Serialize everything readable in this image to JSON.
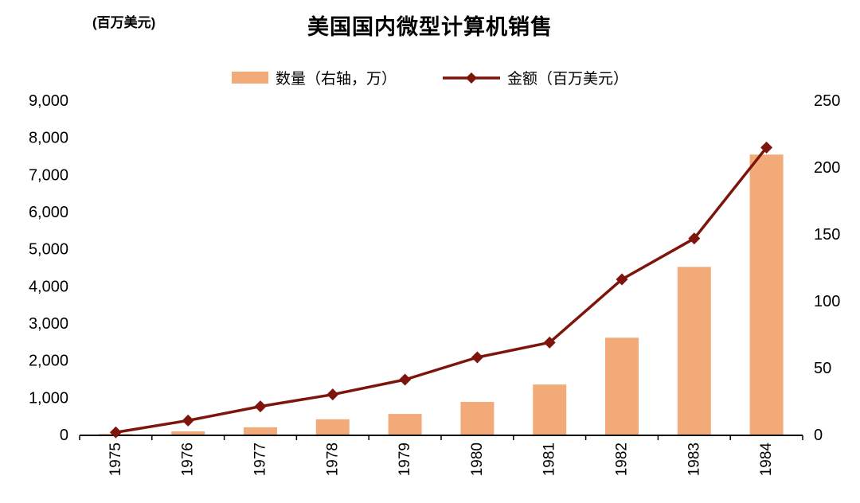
{
  "header": {
    "unit_label": "(百万美元)",
    "title": "美国国内微型计算机销售"
  },
  "legend": [
    {
      "label": "数量（右轴，万）",
      "type": "bar",
      "color": "#F2AB78"
    },
    {
      "label": "金额（百万美元）",
      "type": "line",
      "color": "#7D150D"
    }
  ],
  "chart_data": {
    "type": "combo (bar + line)",
    "title": "美国国内微型计算机销售",
    "categories": [
      "1975",
      "1976",
      "1977",
      "1978",
      "1979",
      "1980",
      "1981",
      "1982",
      "1983",
      "1984"
    ],
    "series": [
      {
        "name": "数量（右轴，万）",
        "type": "bar",
        "axis": "right",
        "color": "#F2AB78",
        "values": [
          1,
          3,
          6,
          12,
          16,
          25,
          38,
          73,
          126,
          210
        ]
      },
      {
        "name": "金额（百万美元）",
        "type": "line",
        "axis": "left",
        "color": "#7D150D",
        "marker": "diamond",
        "values": [
          80,
          400,
          780,
          1100,
          1500,
          2100,
          2500,
          4200,
          5300,
          7750
        ]
      }
    ],
    "left_axis": {
      "min": 0,
      "max": 9000,
      "step": 1000,
      "label": "(百万美元)"
    },
    "right_axis": {
      "min": 0,
      "max": 250,
      "step": 50
    },
    "grid": false,
    "legend_position": "top",
    "x_label_rotation": -90
  }
}
